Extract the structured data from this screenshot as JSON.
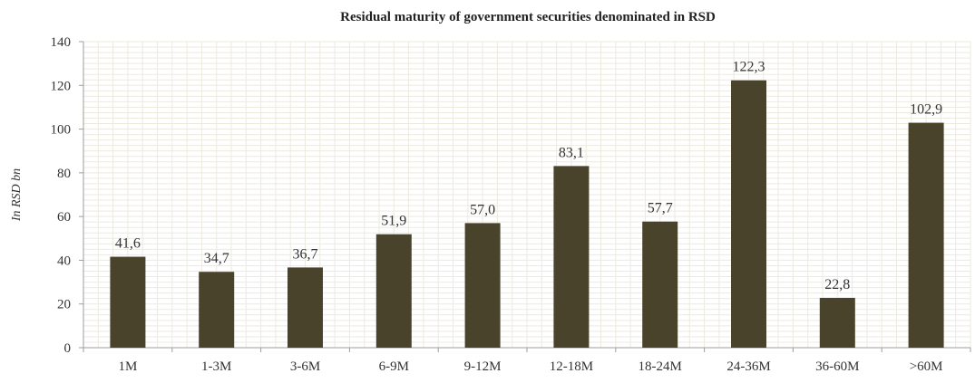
{
  "chart_data": {
    "type": "bar",
    "title": "Residual maturity of government securities denominated in RSD",
    "xlabel": "",
    "ylabel": "In RSD bn",
    "categories": [
      "1M",
      "1-3M",
      "3-6M",
      "6-9M",
      "9-12M",
      "12-18M",
      "18-24M",
      "24-36M",
      "36-60M",
      ">60M"
    ],
    "values": [
      41.6,
      34.7,
      36.7,
      51.9,
      57.0,
      83.1,
      57.7,
      122.3,
      22.8,
      102.9
    ],
    "value_labels": [
      "41,6",
      "34,7",
      "36,7",
      "51,9",
      "57,0",
      "83,1",
      "57,7",
      "122,3",
      "22,8",
      "102,9"
    ],
    "ylim": [
      0,
      140
    ],
    "yticks": [
      0,
      20,
      40,
      60,
      80,
      100,
      120,
      140
    ],
    "grid": true,
    "legend": "none",
    "colors": {
      "bar": "#4a432b",
      "grid": "#ece9df",
      "axis": "#9e9e9e"
    }
  }
}
